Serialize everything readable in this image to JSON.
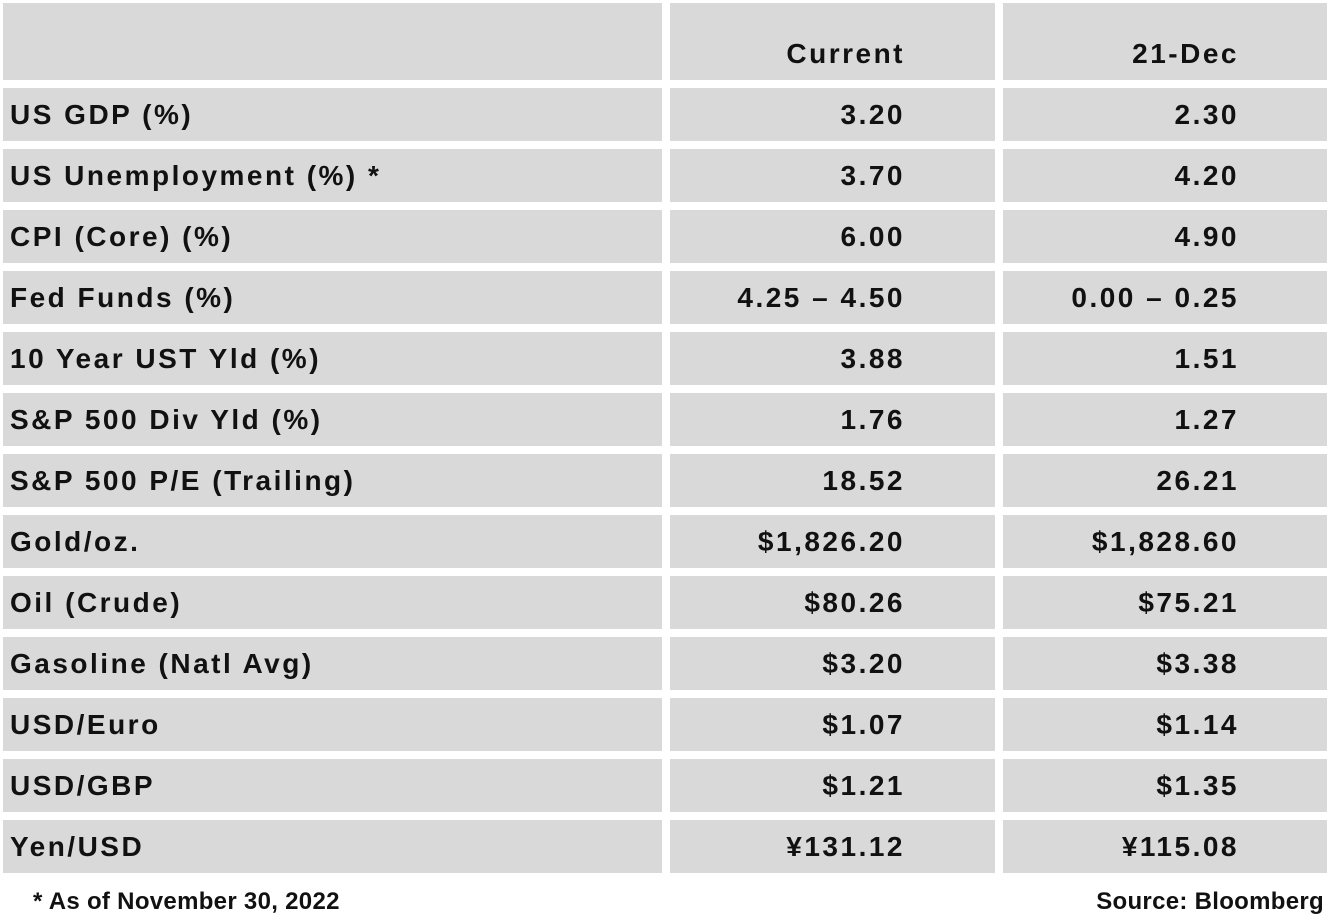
{
  "table": {
    "columns": [
      "Current",
      "21-Dec"
    ],
    "rows": [
      [
        "US GDP (%)",
        "3.20",
        "2.30"
      ],
      [
        "US Unemployment (%) *",
        "3.70",
        "4.20"
      ],
      [
        "CPI (Core) (%)",
        "6.00",
        "4.90"
      ],
      [
        "Fed Funds (%)",
        "4.25 – 4.50",
        "0.00 – 0.25"
      ],
      [
        "10 Year UST Yld (%)",
        "3.88",
        "1.51"
      ],
      [
        "S&P 500 Div Yld (%)",
        "1.76",
        "1.27"
      ],
      [
        "S&P 500 P/E (Trailing)",
        "18.52",
        "26.21"
      ],
      [
        "Gold/oz.",
        "$1,826.20",
        "$1,828.60"
      ],
      [
        "Oil (Crude)",
        "$80.26",
        "$75.21"
      ],
      [
        "Gasoline (Natl Avg)",
        "$3.20",
        "$3.38"
      ],
      [
        "USD/Euro",
        "$1.07",
        "$1.14"
      ],
      [
        "USD/GBP",
        "$1.21",
        "$1.35"
      ],
      [
        "Yen/USD",
        "¥131.12",
        "¥115.08"
      ]
    ]
  },
  "footer": {
    "note": "* As of November 30, 2022",
    "source": "Source: Bloomberg"
  }
}
